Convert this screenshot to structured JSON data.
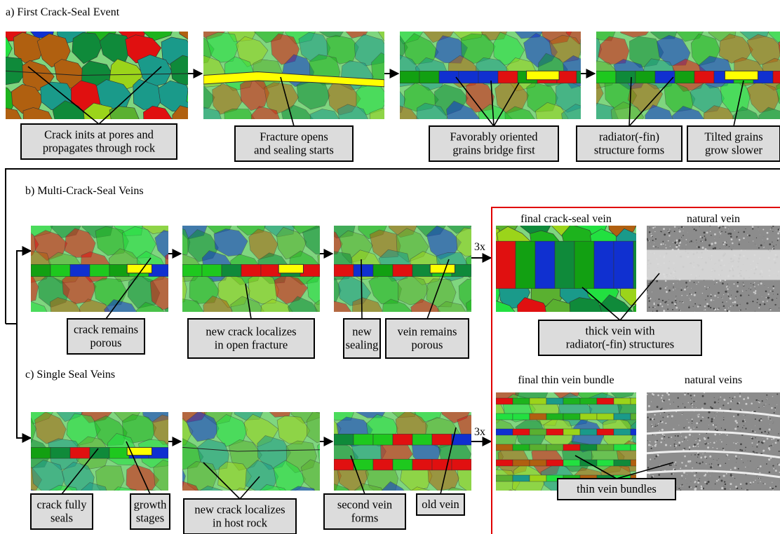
{
  "a": {
    "title": "a) First Crack-Seal Event",
    "callouts": [
      [
        "Crack inits at pores and",
        "propagates through rock"
      ],
      [
        "Fracture opens",
        "and sealing starts"
      ],
      [
        "Favorably oriented",
        "grains bridge first"
      ],
      [
        "radiator(-fin)",
        "structure forms"
      ],
      [
        "Tilted grains",
        "grow slower"
      ]
    ]
  },
  "b": {
    "title": "b) Multi-Crack-Seal Veins",
    "callouts": [
      [
        "crack remains",
        "porous"
      ],
      [
        "new crack localizes",
        "in open fracture"
      ],
      [
        "new",
        "sealing"
      ],
      [
        "vein remains",
        "porous"
      ]
    ],
    "repeat": "3x"
  },
  "c": {
    "title": "c) Single Seal Veins",
    "callouts": [
      [
        "crack fully",
        "seals"
      ],
      [
        "growth",
        "stages"
      ],
      [
        "new crack localizes",
        "in host rock"
      ],
      [
        "second vein",
        "forms"
      ],
      [
        "old vein"
      ]
    ],
    "repeat": "3x"
  },
  "results": {
    "top_left": "final crack-seal vein",
    "top_right": "natural vein",
    "top_callout": [
      "thick vein with",
      "radiator(-fin) structures"
    ],
    "bottom_left": "final thin vein bundle",
    "bottom_right": "natural veins",
    "bottom_callout": [
      "thin vein bundles"
    ]
  }
}
